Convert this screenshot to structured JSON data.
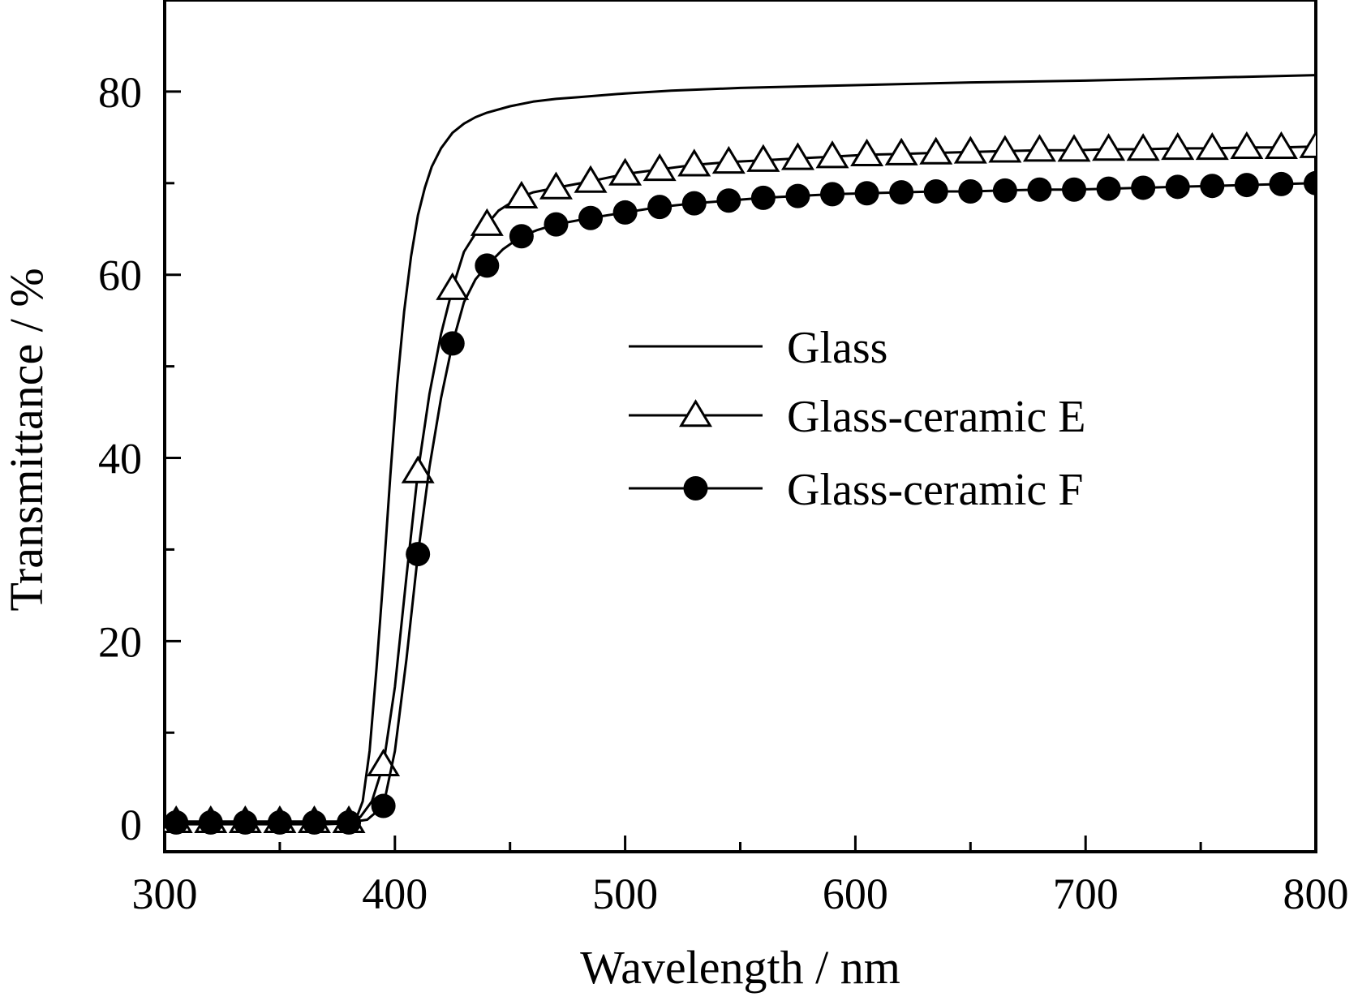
{
  "chart_data": {
    "type": "line",
    "title": "",
    "xlabel": "Wavelength / nm",
    "ylabel": "Transmittance / %",
    "xlim": [
      300,
      800
    ],
    "ylim": [
      -3,
      90
    ],
    "xticks": [
      300,
      400,
      500,
      600,
      700,
      800
    ],
    "yticks": [
      0,
      20,
      40,
      60,
      80
    ],
    "minor_xticks": [
      350,
      450,
      550,
      650,
      750
    ],
    "minor_yticks": [
      10,
      30,
      50,
      70
    ],
    "grid": false,
    "legend_position": "center-right",
    "series": [
      {
        "name": "Glass",
        "marker": "none",
        "x": [
          300,
          370,
          380,
          383,
          386,
          389,
          392,
          395,
          398,
          401,
          404,
          407,
          410,
          413,
          416,
          420,
          425,
          430,
          435,
          440,
          450,
          460,
          470,
          480,
          500,
          520,
          550,
          600,
          650,
          700,
          750,
          800
        ],
        "y": [
          0,
          0,
          0.1,
          0.5,
          2.5,
          8,
          17,
          27,
          38,
          48,
          56,
          62,
          66.5,
          69.5,
          71.8,
          73.8,
          75.5,
          76.5,
          77.2,
          77.7,
          78.4,
          78.9,
          79.2,
          79.4,
          79.8,
          80.1,
          80.4,
          80.7,
          81,
          81.2,
          81.5,
          81.8
        ]
      },
      {
        "name": "Glass-ceramic E",
        "marker": "open-triangle",
        "x": [
          305,
          320,
          335,
          350,
          365,
          380,
          385,
          390,
          395,
          400,
          405,
          410,
          415,
          420,
          425,
          430,
          435,
          440,
          445,
          450,
          455,
          460,
          470,
          485,
          500,
          515,
          530,
          545,
          560,
          575,
          590,
          605,
          620,
          635,
          650,
          665,
          680,
          695,
          710,
          725,
          740,
          755,
          770,
          785,
          800
        ],
        "y": [
          0.3,
          0.3,
          0.3,
          0.3,
          0.3,
          0.3,
          0.8,
          2.5,
          6.5,
          15,
          27,
          38.5,
          47,
          53.5,
          58.5,
          62.5,
          64.5,
          65.5,
          67,
          67.8,
          68.5,
          69,
          69.5,
          70.2,
          71,
          71.5,
          72,
          72.3,
          72.5,
          72.7,
          72.9,
          73.1,
          73.2,
          73.3,
          73.4,
          73.5,
          73.6,
          73.6,
          73.7,
          73.7,
          73.8,
          73.8,
          73.9,
          73.9,
          74
        ]
      },
      {
        "name": "Glass-ceramic F",
        "marker": "filled-circle",
        "x": [
          305,
          320,
          335,
          350,
          365,
          380,
          388,
          395,
          400,
          405,
          410,
          415,
          420,
          425,
          430,
          435,
          440,
          447,
          455,
          462,
          470,
          485,
          500,
          515,
          530,
          545,
          560,
          575,
          590,
          605,
          620,
          635,
          650,
          665,
          680,
          695,
          710,
          725,
          740,
          755,
          770,
          785,
          800
        ],
        "y": [
          0.2,
          0.2,
          0.2,
          0.2,
          0.2,
          0.2,
          0.5,
          2,
          8,
          18,
          29.5,
          39,
          46.5,
          52.5,
          57,
          59.5,
          61,
          62.8,
          64.2,
          64.9,
          65.5,
          66.2,
          66.8,
          67.4,
          67.8,
          68.1,
          68.4,
          68.6,
          68.8,
          68.9,
          69,
          69.1,
          69.1,
          69.2,
          69.3,
          69.3,
          69.4,
          69.5,
          69.6,
          69.7,
          69.8,
          69.9,
          70
        ]
      }
    ]
  }
}
